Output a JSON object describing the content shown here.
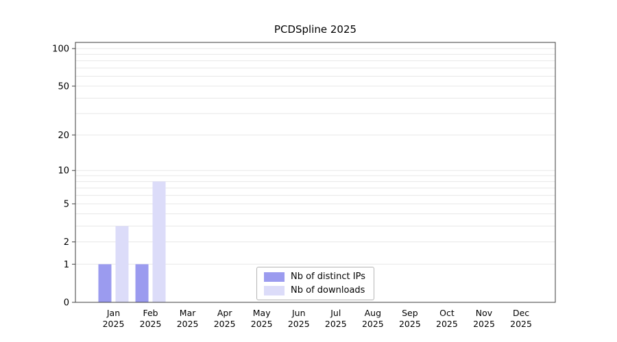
{
  "page": {
    "background": "#ffffff"
  },
  "chart_data": {
    "type": "bar",
    "title": "PCDSpline 2025",
    "categories": [
      "Jan",
      "Feb",
      "Mar",
      "Apr",
      "May",
      "Jun",
      "Jul",
      "Aug",
      "Sep",
      "Oct",
      "Nov",
      "Dec"
    ],
    "category_year": "2025",
    "series": [
      {
        "name": "Nb of distinct IPs",
        "color": "#9b9bef",
        "values": [
          1,
          1,
          0,
          0,
          0,
          0,
          0,
          0,
          0,
          0,
          0,
          0
        ]
      },
      {
        "name": "Nb of downloads",
        "color": "#dcdcf9",
        "values": [
          3,
          8,
          0,
          0,
          0,
          0,
          0,
          0,
          0,
          0,
          0,
          0
        ]
      }
    ],
    "yscale": "log1p",
    "ylim": [
      0,
      100
    ],
    "yticks": [
      0,
      1,
      2,
      5,
      10,
      20,
      50,
      100
    ],
    "minor_gridlines": [
      1,
      2,
      3,
      4,
      5,
      6,
      7,
      8,
      9,
      10,
      20,
      30,
      40,
      50,
      60,
      70,
      80,
      90,
      100
    ],
    "grid": true,
    "legend_position": "lower center",
    "colors": {
      "gridline": "#e7e7e7",
      "axis": "#3a3a3a",
      "text": "#000000"
    }
  }
}
